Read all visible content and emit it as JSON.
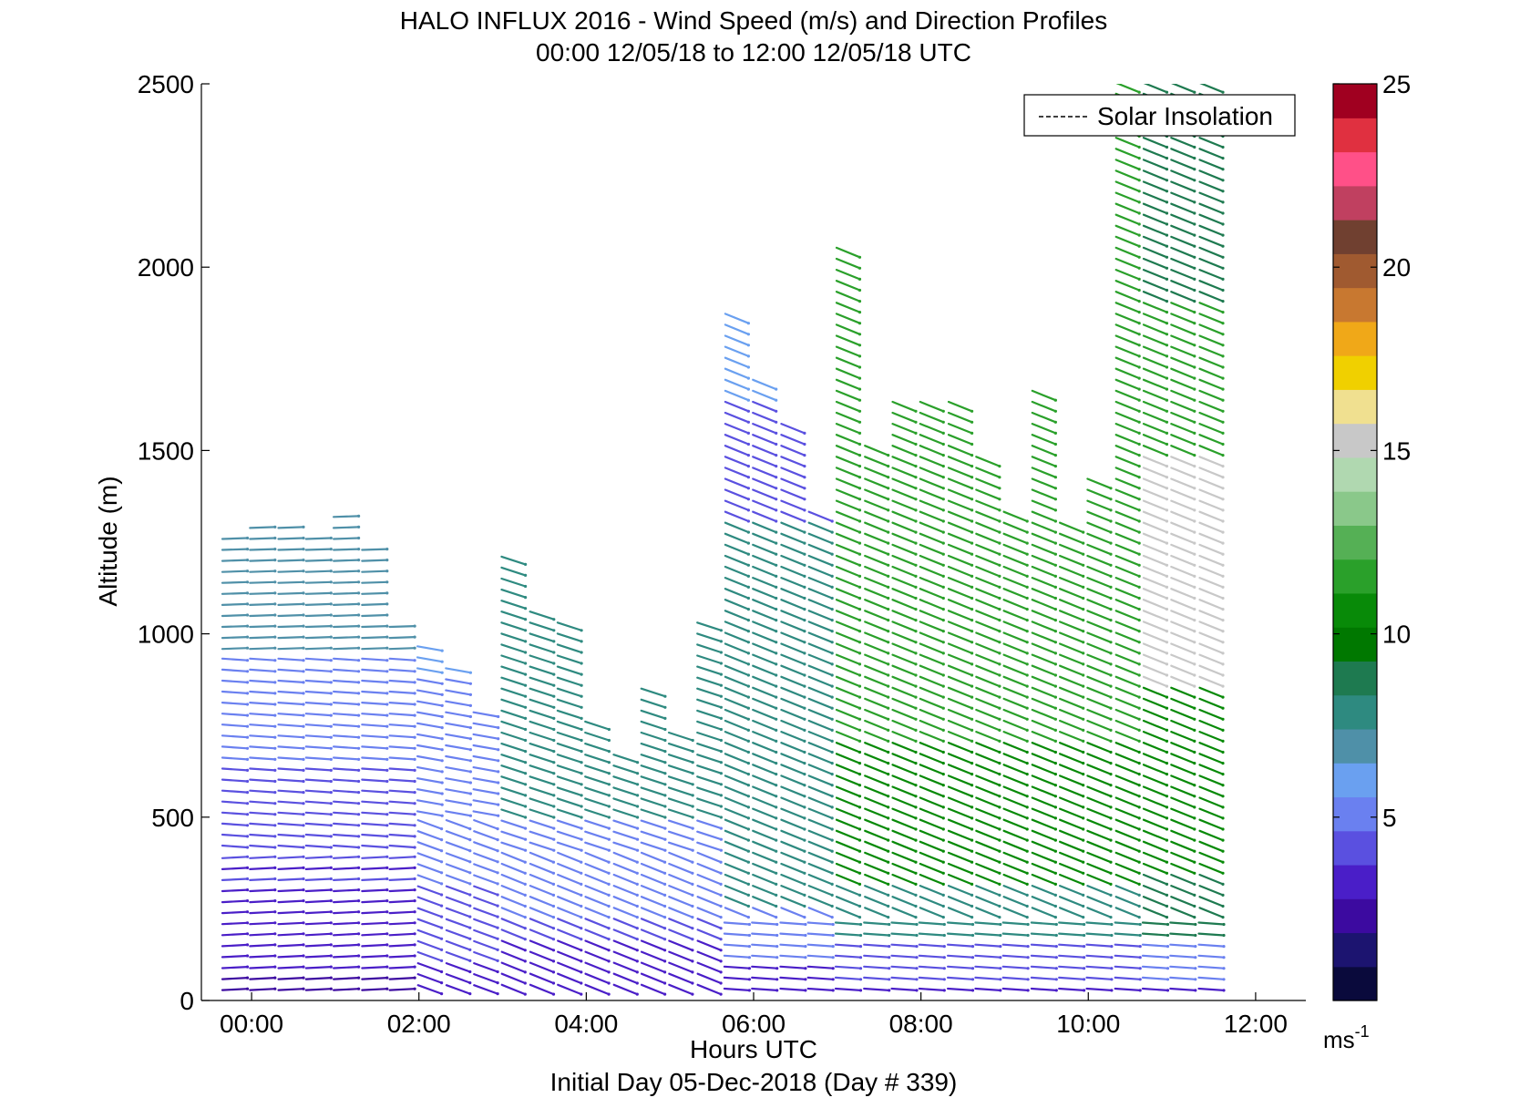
{
  "chart_data": {
    "type": "scatter",
    "subtype": "wind-barb-profile",
    "title": "HALO INFLUX 2016 - Wind Speed (m/s) and Direction Profiles",
    "subtitle": "00:00 12/05/18 to 12:00 12/05/18  UTC",
    "xlabel": "Hours UTC",
    "xlabel2": "Initial Day 05-Dec-2018 (Day # 339)",
    "ylabel": "Altitude (m)",
    "x_ticks": [
      "00:00",
      "02:00",
      "04:00",
      "06:00",
      "08:00",
      "10:00",
      "12:00"
    ],
    "y_ticks": [
      "0",
      "500",
      "1000",
      "1500",
      "2000",
      "2500"
    ],
    "xlim_hours": [
      -0.6,
      12.6
    ],
    "ylim": [
      0,
      2500
    ],
    "legend": {
      "entries": [
        "Solar Insolation"
      ],
      "placement": "top-right"
    },
    "colorbar": {
      "ticks": [
        "5",
        "10",
        "15",
        "20",
        "25"
      ],
      "range": [
        0,
        25
      ],
      "unit_base": "ms",
      "unit_exp": "-1",
      "colors": [
        "#0a0a3c",
        "#1c1470",
        "#3c0aa0",
        "#4a1ec8",
        "#5a50e0",
        "#6a80f0",
        "#6aa0f0",
        "#4f90a8",
        "#2e8a80",
        "#1e7a50",
        "#007800",
        "#088a08",
        "#2aa02a",
        "#55b055",
        "#8ac88a",
        "#b0d8b0",
        "#c8c8c8",
        "#f0e090",
        "#f0d000",
        "#f0a818",
        "#c87830",
        "#a05a30",
        "#704030",
        "#c04060",
        "#ff5088",
        "#e03040",
        "#a00020"
      ]
    },
    "profiles": [
      {
        "time": -0.2,
        "top": 1280
      },
      {
        "time": 0.13,
        "top": 1290
      },
      {
        "time": 0.47,
        "top": 1290
      },
      {
        "time": 0.8,
        "top": 1280
      },
      {
        "time": 1.13,
        "top": 1330
      },
      {
        "time": 1.47,
        "top": 1250
      },
      {
        "time": 1.8,
        "top": 1040
      },
      {
        "time": 2.13,
        "top": 960
      },
      {
        "time": 2.47,
        "top": 910
      },
      {
        "time": 2.8,
        "top": 800
      },
      {
        "time": 3.13,
        "top": 1210
      },
      {
        "time": 3.47,
        "top": 1050
      },
      {
        "time": 3.8,
        "top": 1020
      },
      {
        "time": 4.13,
        "top": 750
      },
      {
        "time": 4.47,
        "top": 680
      },
      {
        "time": 4.8,
        "top": 850
      },
      {
        "time": 5.13,
        "top": 740
      },
      {
        "time": 5.47,
        "top": 1040
      },
      {
        "time": 5.8,
        "top": 1870
      },
      {
        "time": 6.13,
        "top": 1700
      },
      {
        "time": 6.47,
        "top": 1580
      },
      {
        "time": 6.8,
        "top": 1320
      },
      {
        "time": 7.13,
        "top": 2040
      },
      {
        "time": 7.47,
        "top": 1500
      },
      {
        "time": 7.8,
        "top": 1630
      },
      {
        "time": 8.13,
        "top": 1640
      },
      {
        "time": 8.47,
        "top": 1620
      },
      {
        "time": 8.8,
        "top": 1480
      },
      {
        "time": 9.13,
        "top": 1330
      },
      {
        "time": 9.47,
        "top": 1670
      },
      {
        "time": 9.8,
        "top": 1300
      },
      {
        "time": 10.13,
        "top": 1430
      },
      {
        "time": 10.47,
        "top": 2490
      },
      {
        "time": 10.8,
        "top": 2490
      },
      {
        "time": 11.13,
        "top": 2490
      },
      {
        "time": 11.47,
        "top": 2490
      }
    ]
  }
}
